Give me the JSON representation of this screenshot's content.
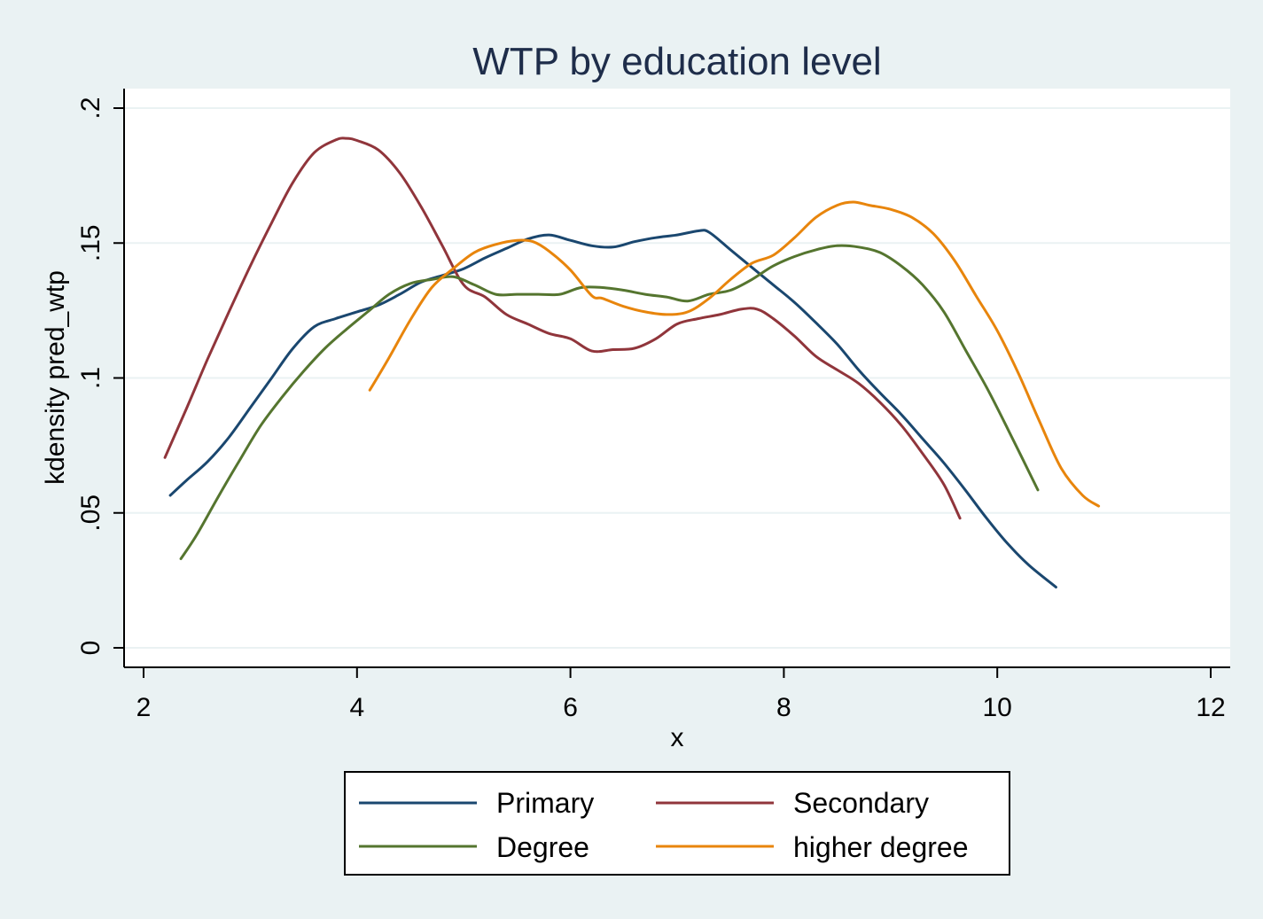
{
  "chart_data": {
    "type": "line",
    "title": "WTP by education level",
    "xlabel": "x",
    "ylabel": "kdensity pred_wtp",
    "xlim": [
      2,
      12
    ],
    "ylim": [
      0,
      0.2
    ],
    "xticks": [
      2,
      4,
      6,
      8,
      10,
      12
    ],
    "xtick_labels": [
      "2",
      "4",
      "6",
      "8",
      "10",
      "12"
    ],
    "yticks": [
      0,
      0.05,
      0.1,
      0.15,
      0.2
    ],
    "ytick_labels": [
      "0",
      ".05",
      ".1",
      ".15",
      ".2"
    ],
    "grid": true,
    "legend_position": "bottom",
    "series": [
      {
        "name": "Primary",
        "color": "#1a476f",
        "x": [
          2.25,
          2.4,
          2.6,
          2.8,
          3.0,
          3.2,
          3.4,
          3.6,
          3.8,
          4.0,
          4.2,
          4.4,
          4.6,
          4.8,
          5.0,
          5.2,
          5.4,
          5.6,
          5.8,
          6.0,
          6.2,
          6.4,
          6.6,
          6.8,
          7.0,
          7.2,
          7.3,
          7.5,
          7.7,
          7.9,
          8.1,
          8.3,
          8.5,
          8.7,
          8.9,
          9.1,
          9.3,
          9.5,
          9.7,
          9.9,
          10.1,
          10.3,
          10.55
        ],
        "y": [
          0.0565,
          0.062,
          0.069,
          0.078,
          0.089,
          0.1,
          0.111,
          0.119,
          0.122,
          0.1245,
          0.127,
          0.131,
          0.1355,
          0.138,
          0.1405,
          0.1445,
          0.148,
          0.1515,
          0.153,
          0.151,
          0.149,
          0.1485,
          0.1505,
          0.152,
          0.153,
          0.1545,
          0.154,
          0.1475,
          0.141,
          0.1345,
          0.128,
          0.1205,
          0.1125,
          0.103,
          0.0945,
          0.0865,
          0.0775,
          0.0685,
          0.0585,
          0.048,
          0.0385,
          0.0305,
          0.0225
        ]
      },
      {
        "name": "Secondary",
        "color": "#90353b",
        "x": [
          2.2,
          2.4,
          2.6,
          2.8,
          3.0,
          3.2,
          3.4,
          3.6,
          3.8,
          3.9,
          4.0,
          4.2,
          4.4,
          4.6,
          4.8,
          5.0,
          5.2,
          5.4,
          5.6,
          5.8,
          6.0,
          6.2,
          6.4,
          6.6,
          6.8,
          7.0,
          7.2,
          7.4,
          7.6,
          7.75,
          7.9,
          8.1,
          8.3,
          8.5,
          8.7,
          8.9,
          9.1,
          9.3,
          9.5,
          9.65
        ],
        "y": [
          0.0705,
          0.0885,
          0.107,
          0.1245,
          0.1415,
          0.1575,
          0.1725,
          0.1835,
          0.1882,
          0.1888,
          0.188,
          0.1845,
          0.176,
          0.1635,
          0.149,
          0.1345,
          0.13,
          0.1235,
          0.12,
          0.1165,
          0.1145,
          0.11,
          0.1105,
          0.111,
          0.1145,
          0.12,
          0.122,
          0.1235,
          0.1255,
          0.1255,
          0.122,
          0.1155,
          0.108,
          0.103,
          0.098,
          0.091,
          0.0825,
          0.072,
          0.0605,
          0.048
        ]
      },
      {
        "name": "Degree",
        "color": "#55752f",
        "x": [
          2.35,
          2.5,
          2.7,
          2.9,
          3.1,
          3.3,
          3.5,
          3.7,
          3.9,
          4.1,
          4.3,
          4.5,
          4.7,
          4.9,
          5.1,
          5.3,
          5.5,
          5.7,
          5.9,
          6.1,
          6.3,
          6.5,
          6.7,
          6.9,
          7.1,
          7.3,
          7.5,
          7.7,
          7.9,
          8.1,
          8.3,
          8.5,
          8.7,
          8.9,
          9.1,
          9.3,
          9.5,
          9.7,
          9.9,
          10.1,
          10.38
        ],
        "y": [
          0.033,
          0.042,
          0.056,
          0.0695,
          0.0825,
          0.093,
          0.1025,
          0.111,
          0.118,
          0.1245,
          0.131,
          0.135,
          0.1365,
          0.1375,
          0.1345,
          0.131,
          0.131,
          0.131,
          0.131,
          0.1335,
          0.1335,
          0.1325,
          0.131,
          0.13,
          0.1285,
          0.131,
          0.1325,
          0.1365,
          0.1415,
          0.145,
          0.1475,
          0.149,
          0.1485,
          0.1465,
          0.1415,
          0.1345,
          0.1245,
          0.1105,
          0.0965,
          0.081,
          0.0585
        ]
      },
      {
        "name": "higher degree",
        "color": "#e8850c",
        "x": [
          4.12,
          4.3,
          4.5,
          4.7,
          4.9,
          5.1,
          5.3,
          5.5,
          5.65,
          5.8,
          6.0,
          6.2,
          6.3,
          6.5,
          6.7,
          6.9,
          7.1,
          7.3,
          7.5,
          7.7,
          7.9,
          8.1,
          8.3,
          8.5,
          8.65,
          8.8,
          9.0,
          9.2,
          9.4,
          9.6,
          9.8,
          10.0,
          10.2,
          10.4,
          10.6,
          10.8,
          10.95
        ],
        "y": [
          0.0955,
          0.1075,
          0.1215,
          0.1335,
          0.1405,
          0.1465,
          0.1495,
          0.151,
          0.1505,
          0.147,
          0.14,
          0.1305,
          0.1295,
          0.1265,
          0.1245,
          0.1235,
          0.1245,
          0.1295,
          0.1365,
          0.1425,
          0.1455,
          0.152,
          0.1595,
          0.164,
          0.1652,
          0.164,
          0.1625,
          0.1595,
          0.1535,
          0.1435,
          0.1305,
          0.1175,
          0.1015,
          0.0835,
          0.0665,
          0.0565,
          0.0525
        ]
      }
    ]
  }
}
